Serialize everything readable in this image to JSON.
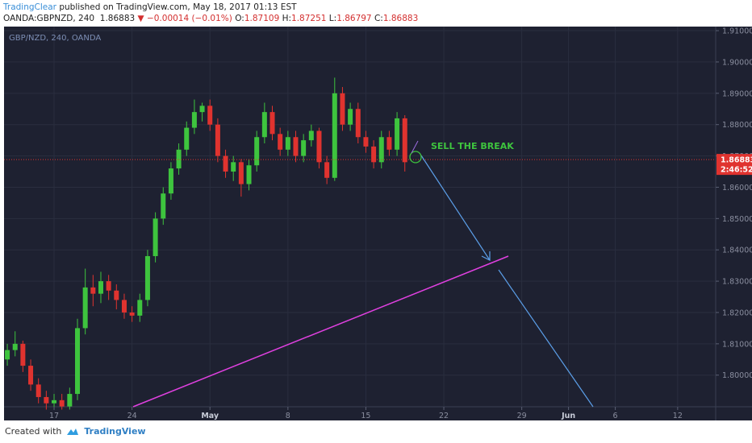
{
  "header": {
    "author": "TradingClear",
    "published": "published on TradingView.com, May 18, 2017 01:13 EST",
    "symbol": "OANDA:GBPNZD, 240",
    "price": 1.86883,
    "change": "▼ −0.00014 (−0.01%)",
    "quote": [
      {
        "label": "O:",
        "value": 1.87109
      },
      {
        "label": "H:",
        "value": 1.87251
      },
      {
        "label": "L:",
        "value": 1.86797
      },
      {
        "label": "C:",
        "value": 1.86883
      }
    ]
  },
  "chart_data": {
    "type": "candlestick",
    "legend": "GBP/NZD, 240, OANDA",
    "up_color": "#3ec43e",
    "down_color": "#e0332f",
    "x": [
      -3,
      -2.5,
      -2,
      -1.5,
      -1,
      -0.5,
      0,
      0.5,
      1,
      1.5,
      2,
      2.5,
      3,
      3.5,
      4,
      4.5,
      5,
      5.5,
      6,
      6.5,
      7,
      7.5,
      8,
      8.5,
      9,
      9.5,
      10,
      10.5,
      11,
      11.5,
      12,
      12.5,
      13,
      13.5,
      14,
      14.5,
      15,
      15.5,
      16,
      16.5,
      17,
      17.5,
      18,
      18.5,
      19,
      19.5,
      20,
      20.5,
      21,
      21.5,
      22,
      22.5
    ],
    "ohlc": [
      [
        1.805,
        1.81,
        1.803,
        1.808
      ],
      [
        1.808,
        1.814,
        1.806,
        1.81
      ],
      [
        1.81,
        1.811,
        1.801,
        1.803
      ],
      [
        1.803,
        1.805,
        1.795,
        1.797
      ],
      [
        1.797,
        1.799,
        1.791,
        1.793
      ],
      [
        1.793,
        1.795,
        1.789,
        1.791
      ],
      [
        1.791,
        1.794,
        1.789,
        1.792
      ],
      [
        1.792,
        1.794,
        1.789,
        1.79
      ],
      [
        1.79,
        1.796,
        1.789,
        1.794
      ],
      [
        1.794,
        1.818,
        1.792,
        1.815
      ],
      [
        1.815,
        1.834,
        1.813,
        1.828
      ],
      [
        1.828,
        1.832,
        1.822,
        1.826
      ],
      [
        1.826,
        1.833,
        1.823,
        1.83
      ],
      [
        1.83,
        1.832,
        1.824,
        1.827
      ],
      [
        1.827,
        1.829,
        1.821,
        1.824
      ],
      [
        1.824,
        1.826,
        1.818,
        1.82
      ],
      [
        1.82,
        1.822,
        1.817,
        1.819
      ],
      [
        1.819,
        1.826,
        1.817,
        1.824
      ],
      [
        1.824,
        1.84,
        1.822,
        1.838
      ],
      [
        1.838,
        1.852,
        1.836,
        1.85
      ],
      [
        1.85,
        1.86,
        1.848,
        1.858
      ],
      [
        1.858,
        1.868,
        1.856,
        1.866
      ],
      [
        1.866,
        1.874,
        1.864,
        1.872
      ],
      [
        1.872,
        1.881,
        1.87,
        1.879
      ],
      [
        1.879,
        1.888,
        1.877,
        1.884
      ],
      [
        1.884,
        1.887,
        1.881,
        1.886
      ],
      [
        1.886,
        1.888,
        1.878,
        1.88
      ],
      [
        1.88,
        1.882,
        1.868,
        1.87
      ],
      [
        1.87,
        1.872,
        1.863,
        1.865
      ],
      [
        1.865,
        1.87,
        1.862,
        1.868
      ],
      [
        1.868,
        1.869,
        1.857,
        1.861
      ],
      [
        1.861,
        1.869,
        1.859,
        1.867
      ],
      [
        1.867,
        1.878,
        1.865,
        1.876
      ],
      [
        1.876,
        1.887,
        1.874,
        1.884
      ],
      [
        1.884,
        1.886,
        1.875,
        1.877
      ],
      [
        1.877,
        1.879,
        1.87,
        1.872
      ],
      [
        1.872,
        1.878,
        1.87,
        1.876
      ],
      [
        1.876,
        1.878,
        1.868,
        1.87
      ],
      [
        1.87,
        1.877,
        1.868,
        1.875
      ],
      [
        1.875,
        1.88,
        1.873,
        1.878
      ],
      [
        1.878,
        1.879,
        1.866,
        1.868
      ],
      [
        1.868,
        1.87,
        1.861,
        1.863
      ],
      [
        1.863,
        1.895,
        1.862,
        1.89
      ],
      [
        1.89,
        1.892,
        1.878,
        1.88
      ],
      [
        1.88,
        1.887,
        1.878,
        1.885
      ],
      [
        1.885,
        1.887,
        1.874,
        1.876
      ],
      [
        1.876,
        1.878,
        1.871,
        1.873
      ],
      [
        1.873,
        1.875,
        1.866,
        1.868
      ],
      [
        1.868,
        1.878,
        1.866,
        1.876
      ],
      [
        1.876,
        1.878,
        1.87,
        1.872
      ],
      [
        1.872,
        1.884,
        1.87,
        1.882
      ],
      [
        1.882,
        1.883,
        1.865,
        1.868
      ]
    ],
    "xlim": [
      -3.21,
      42.44
    ],
    "ylim": [
      1.7899,
      1.9113
    ],
    "xticks": [
      {
        "value": 0,
        "label": "17"
      },
      {
        "value": 5,
        "label": "24"
      },
      {
        "value": 10,
        "label": "May"
      },
      {
        "value": 15,
        "label": "8"
      },
      {
        "value": 20,
        "label": "15"
      },
      {
        "value": 25,
        "label": "22"
      },
      {
        "value": 30,
        "label": "29"
      },
      {
        "value": 33,
        "label": "Jun"
      },
      {
        "value": 36,
        "label": "6"
      },
      {
        "value": 40,
        "label": "12"
      }
    ],
    "yticks": [
      {
        "value": 1.8,
        "label": "1.80000"
      },
      {
        "value": 1.81,
        "label": "1.81000"
      },
      {
        "value": 1.82,
        "label": "1.82000"
      },
      {
        "value": 1.83,
        "label": "1.83000"
      },
      {
        "value": 1.84,
        "label": "1.84000"
      },
      {
        "value": 1.85,
        "label": "1.85000"
      },
      {
        "value": 1.86,
        "label": "1.86000"
      },
      {
        "value": 1.87,
        "label": "1.87000"
      },
      {
        "value": 1.88,
        "label": "1.88000"
      },
      {
        "value": 1.89,
        "label": "1.89000"
      },
      {
        "value": 1.9,
        "label": "1.90000"
      },
      {
        "value": 1.91,
        "label": "1.91000"
      }
    ],
    "grid": true,
    "last_price": 1.86883,
    "countdown": "2:46:52",
    "annotation": "SELL THE BREAK"
  },
  "footer": {
    "created": "Created with",
    "brand": "TradingView"
  }
}
